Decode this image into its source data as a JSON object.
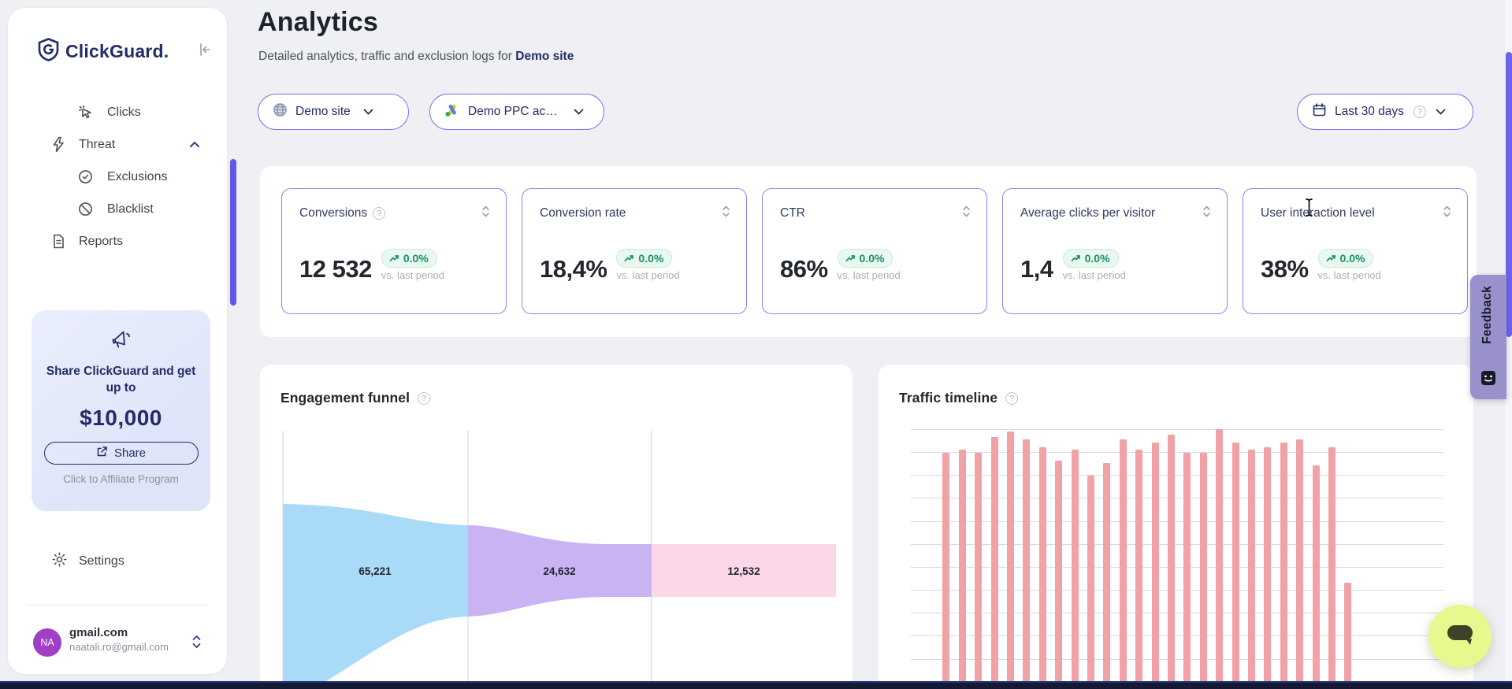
{
  "app": {
    "name": "ClickGuard."
  },
  "sidebar": {
    "nav": [
      {
        "label": "Clicks"
      },
      {
        "label": "Threat"
      },
      {
        "label": "Exclusions"
      },
      {
        "label": "Blacklist"
      },
      {
        "label": "Reports"
      }
    ],
    "promo": {
      "heading": "Share ClickGuard and get up to",
      "amount": "$10,000",
      "share_label": "Share",
      "footer": "Click to Affiliate Program"
    },
    "settings_label": "Settings",
    "user": {
      "initials": "NA",
      "name": "gmail.com",
      "email": "naatali.ro@gmail.com"
    }
  },
  "header": {
    "title": "Analytics",
    "subtitle_prefix": "Detailed analytics, traffic and exclusion logs for ",
    "subtitle_site": "Demo site"
  },
  "filters": {
    "site_label": "Demo site",
    "account_label": "Demo PPC ac…",
    "date_label": "Last 30 days"
  },
  "stats": [
    {
      "title": "Conversions",
      "value": "12 532",
      "change": "0.0%",
      "compare": "vs. last period"
    },
    {
      "title": "Conversion rate",
      "value": "18,4%",
      "change": "0.0%",
      "compare": "vs. last period"
    },
    {
      "title": "CTR",
      "value": "86%",
      "change": "0.0%",
      "compare": "vs. last period"
    },
    {
      "title": "Average clicks per visitor",
      "value": "1,4",
      "change": "0.0%",
      "compare": "vs. last period"
    },
    {
      "title": "User interaction level",
      "value": "38%",
      "change": "0.0%",
      "compare": "vs. last period"
    }
  ],
  "charts": {
    "funnel_title": "Engagement funnel",
    "timeline_title": "Traffic timeline"
  },
  "feedback": {
    "label": "Feedback"
  },
  "chart_data": [
    {
      "type": "funnel",
      "title": "Engagement funnel",
      "stages": [
        {
          "value": 65221,
          "display": "65,221",
          "color": "#a9daf8"
        },
        {
          "value": 24632,
          "display": "24,632",
          "color": "#cab3f3"
        },
        {
          "value": 12532,
          "display": "12,532",
          "color": "#fbd7e8"
        }
      ],
      "legend": "none",
      "dividers": 3
    },
    {
      "type": "bar",
      "title": "Traffic timeline",
      "bar_color": "#f0a2a6",
      "gridlines": 12,
      "grid": true,
      "axis_labels_visible": false,
      "values_pct": [
        2,
        91,
        92,
        91,
        97,
        99,
        96,
        93,
        88,
        92,
        82,
        87,
        96,
        92,
        95,
        98,
        91,
        91,
        100,
        95,
        92,
        93,
        95,
        96,
        86,
        93,
        41
      ]
    }
  ],
  "colors": {
    "accent": "#6b5df0",
    "pill_border": "#7e71ef",
    "positive": "#17945f",
    "bar": "#f0a2a6",
    "funnel_blue": "#a9daf8",
    "funnel_purple": "#cab3f3",
    "funnel_pink": "#fbd7e8",
    "sidebar_scrollbar": "#6157e8",
    "feedback_bg": "#9891cc",
    "chat_bg": "#e9f78f",
    "navy": "#232c66"
  }
}
